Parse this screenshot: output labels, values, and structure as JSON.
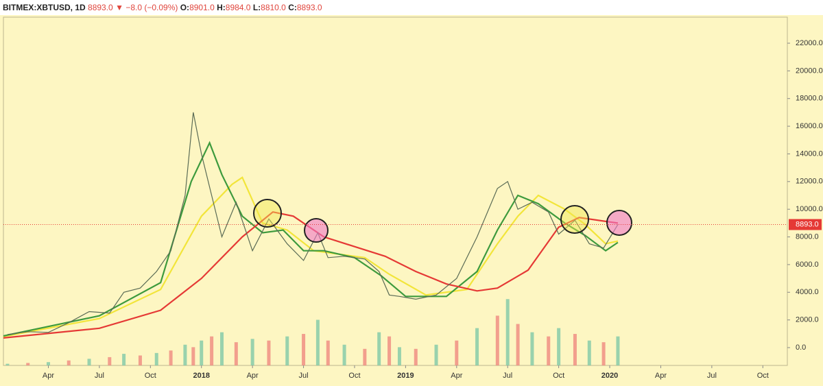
{
  "header": {
    "symbol": "BITMEX:XBTUSD, 1D",
    "last": "8893.0",
    "change": "−8.0 (−0.09%)",
    "ohlc": [
      {
        "label": "O:",
        "value": "8901.0"
      },
      {
        "label": "H:",
        "value": "8984.0"
      },
      {
        "label": "L:",
        "value": "8810.0"
      },
      {
        "label": "C:",
        "value": "8893.0"
      }
    ]
  },
  "chart_data": {
    "type": "line",
    "xlim": [
      2017.03,
      2020.87
    ],
    "ylim": [
      -1288,
      23883
    ],
    "y2lim": [
      0,
      420
    ],
    "grid": false,
    "xticks": [
      {
        "value": 2017.25,
        "label": "Apr"
      },
      {
        "value": 2017.5,
        "label": "Jul"
      },
      {
        "value": 2017.75,
        "label": "Oct"
      },
      2018,
      {
        "value": 2018.25,
        "label": "Apr"
      },
      {
        "value": 2018.5,
        "label": "Jul"
      },
      {
        "value": 2018.75,
        "label": "Oct"
      },
      2019,
      {
        "value": 2019.25,
        "label": "Apr"
      },
      {
        "value": 2019.5,
        "label": "Jul"
      },
      {
        "value": 2019.75,
        "label": "Oct"
      },
      2020,
      {
        "value": 2020.25,
        "label": "Apr"
      },
      {
        "value": 2020.5,
        "label": "Jul"
      },
      {
        "value": 2020.75,
        "label": "Oct"
      }
    ],
    "yticks": [
      {
        "value": 0,
        "label": "0.0"
      },
      {
        "value": 2000,
        "label": "2000.0"
      },
      {
        "value": 4000,
        "label": "4000.0"
      },
      {
        "value": 6000,
        "label": "6000.0"
      },
      {
        "value": 8000,
        "label": "8000.0"
      },
      {
        "value": 10000,
        "label": "10000.0"
      },
      {
        "value": 12000,
        "label": "12000.0"
      },
      {
        "value": 14000,
        "label": "14000.0"
      },
      {
        "value": 16000,
        "label": "16000.0"
      },
      {
        "value": 18000,
        "label": "18000.0"
      },
      {
        "value": 20000,
        "label": "20000.0"
      },
      {
        "value": 22000,
        "label": "22000.0"
      }
    ],
    "last_price": {
      "value": 8893,
      "label": "8893.0"
    },
    "series": [
      {
        "color": "#5a6b55",
        "x": [
          2017.05,
          2017.15,
          2017.25,
          2017.35,
          2017.45,
          2017.55,
          2017.62,
          2017.7,
          2017.78,
          2017.85,
          2017.92,
          2017.96,
          2018.0,
          2018.05,
          2018.1,
          2018.17,
          2018.25,
          2018.33,
          2018.42,
          2018.5,
          2018.57,
          2018.62,
          2018.7,
          2018.8,
          2018.87,
          2018.92,
          2018.97,
          2019.05,
          2019.15,
          2019.25,
          2019.35,
          2019.45,
          2019.5,
          2019.55,
          2019.62,
          2019.7,
          2019.75,
          2019.83,
          2019.9,
          2019.97,
          2020.04
        ],
        "values": [
          950,
          1150,
          1100,
          1800,
          2600,
          2500,
          4000,
          4300,
          5500,
          7000,
          11000,
          17000,
          14000,
          11000,
          8000,
          10500,
          7000,
          9300,
          7500,
          6300,
          8300,
          6500,
          6600,
          6400,
          5500,
          3800,
          3700,
          3500,
          3800,
          5000,
          8000,
          11500,
          12000,
          10000,
          10500,
          9800,
          8200,
          9200,
          7500,
          7200,
          8893
        ]
      },
      {
        "color": "#e53935",
        "x": [
          2017.03,
          2017.5,
          2017.8,
          2018.0,
          2018.2,
          2018.35,
          2018.45,
          2018.6,
          2018.75,
          2018.9,
          2019.05,
          2019.2,
          2019.35,
          2019.45,
          2019.6,
          2019.75,
          2019.85,
          2020.04
        ],
        "values": [
          700,
          1400,
          2700,
          5000,
          8000,
          9800,
          9500,
          8000,
          7300,
          6600,
          5500,
          4600,
          4100,
          4300,
          5600,
          8700,
          9400,
          9000
        ]
      },
      {
        "color": "#f2e53a",
        "x": [
          2017.03,
          2017.5,
          2017.8,
          2018.0,
          2018.15,
          2018.2,
          2018.3,
          2018.42,
          2018.55,
          2018.8,
          2018.92,
          2019.1,
          2019.3,
          2019.45,
          2019.55,
          2019.65,
          2019.78,
          2019.88,
          2019.98,
          2020.04
        ],
        "values": [
          800,
          2100,
          4200,
          9500,
          11800,
          12300,
          9000,
          8500,
          7000,
          6500,
          5300,
          3800,
          4200,
          7500,
          9500,
          11000,
          10000,
          8900,
          7500,
          7700
        ]
      },
      {
        "color": "#3d9a3d",
        "x": [
          2017.03,
          2017.5,
          2017.8,
          2017.95,
          2018.04,
          2018.1,
          2018.2,
          2018.3,
          2018.4,
          2018.5,
          2018.6,
          2018.75,
          2018.88,
          2019.0,
          2019.2,
          2019.35,
          2019.45,
          2019.55,
          2019.65,
          2019.78,
          2019.88,
          2019.98,
          2020.04
        ],
        "values": [
          850,
          2300,
          4700,
          12000,
          14800,
          12500,
          9500,
          8300,
          8500,
          7000,
          7000,
          6500,
          5200,
          3700,
          3700,
          5500,
          8500,
          11000,
          10400,
          9000,
          8100,
          7000,
          7600
        ]
      },
      {
        "type": "bar",
        "axis": "y2",
        "colors": [
          "#7fc9a8",
          "#ef8a80"
        ],
        "x": [
          2017.05,
          2017.15,
          2017.25,
          2017.35,
          2017.45,
          2017.55,
          2017.62,
          2017.7,
          2017.78,
          2017.85,
          2017.92,
          2017.96,
          2018.0,
          2018.05,
          2018.1,
          2018.17,
          2018.25,
          2018.33,
          2018.42,
          2018.5,
          2018.57,
          2018.62,
          2018.7,
          2018.8,
          2018.87,
          2018.92,
          2018.97,
          2019.05,
          2019.15,
          2019.25,
          2019.35,
          2019.45,
          2019.5,
          2019.55,
          2019.62,
          2019.7,
          2019.75,
          2019.83,
          2019.9,
          2019.97,
          2020.04
        ],
        "values": [
          2,
          3,
          4,
          6,
          8,
          10,
          14,
          12,
          15,
          18,
          25,
          22,
          30,
          35,
          40,
          28,
          32,
          30,
          35,
          38,
          55,
          30,
          25,
          20,
          40,
          35,
          22,
          20,
          25,
          30,
          45,
          60,
          80,
          50,
          40,
          35,
          45,
          38,
          30,
          28,
          35
        ]
      }
    ]
  }
}
